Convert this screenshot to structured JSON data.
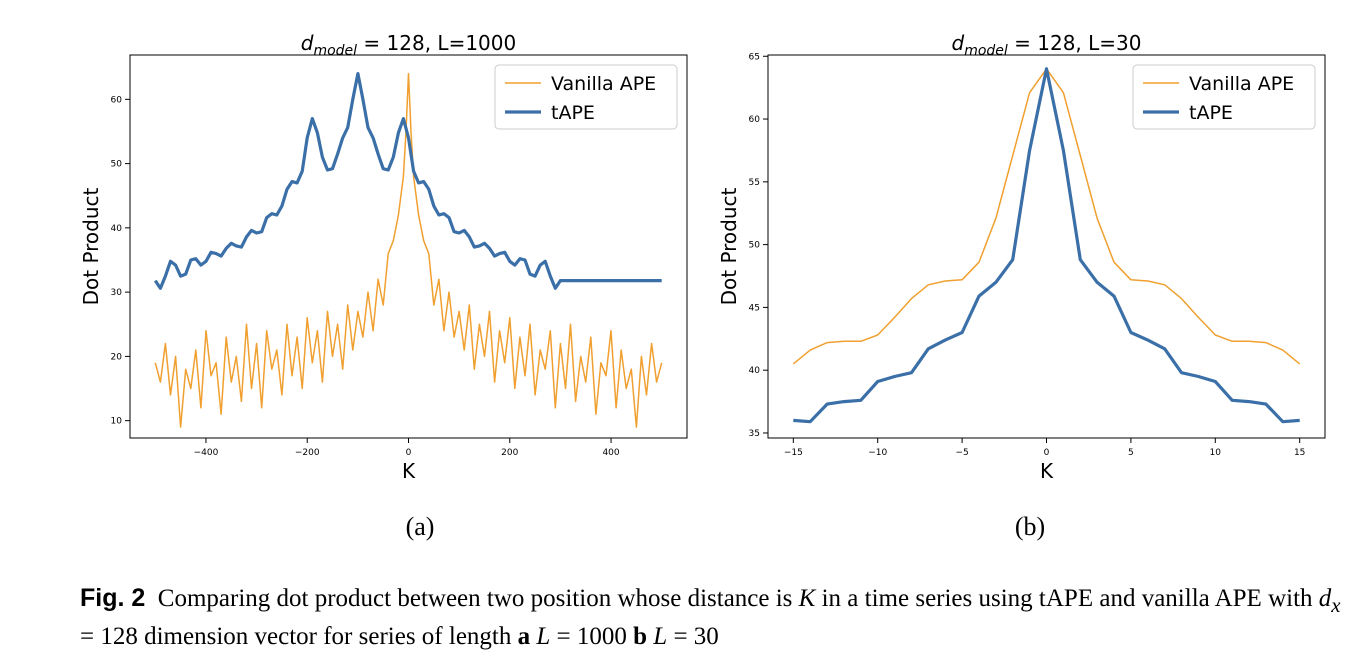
{
  "chart_data": [
    {
      "type": "line",
      "title": "d_model = 128, L=1000",
      "xlabel": "K",
      "ylabel": "Dot Product",
      "xlim": [
        -550,
        550
      ],
      "ylim": [
        7.3,
        66.9
      ],
      "xticks": [
        -400,
        -200,
        0,
        200,
        400
      ],
      "yticks": [
        10,
        20,
        30,
        40,
        50,
        60
      ],
      "grid": false,
      "legend": "top-right",
      "series": [
        {
          "name": "Vanilla APE",
          "color": "#f0a030",
          "x": [
            -500,
            -490,
            -480,
            -470,
            -460,
            -450,
            -440,
            -430,
            -420,
            -410,
            -400,
            -390,
            -380,
            -370,
            -360,
            -350,
            -340,
            -330,
            -320,
            -310,
            -300,
            -290,
            -280,
            -270,
            -260,
            -250,
            -240,
            -230,
            -220,
            -210,
            -200,
            -190,
            -180,
            -170,
            -160,
            -150,
            -140,
            -130,
            -120,
            -110,
            -100,
            -90,
            -80,
            -70,
            -60,
            -50,
            -40,
            -30,
            -20,
            -10,
            -5,
            0,
            5,
            10,
            20,
            30,
            40,
            50,
            60,
            70,
            80,
            90,
            100,
            110,
            120,
            130,
            140,
            150,
            160,
            170,
            180,
            190,
            200,
            210,
            220,
            230,
            240,
            250,
            260,
            270,
            280,
            290,
            300,
            310,
            320,
            330,
            340,
            350,
            360,
            370,
            380,
            390,
            400,
            410,
            420,
            430,
            440,
            450,
            460,
            470,
            480,
            490,
            500
          ],
          "y": [
            19,
            16,
            22,
            14,
            20,
            9,
            18,
            15,
            21,
            12,
            24,
            17,
            19,
            11,
            23,
            16,
            20,
            13,
            25,
            15,
            22,
            12,
            24,
            18,
            21,
            14,
            25,
            17,
            23,
            15,
            26,
            19,
            24,
            16,
            27,
            20,
            25,
            18,
            28,
            21,
            27,
            23,
            30,
            24,
            32,
            28,
            36,
            38,
            42,
            48,
            55,
            64,
            55,
            48,
            42,
            38,
            36,
            28,
            32,
            24,
            30,
            23,
            27,
            21,
            28,
            18,
            25,
            20,
            27,
            16,
            24,
            19,
            26,
            15,
            23,
            17,
            25,
            14,
            21,
            18,
            24,
            12,
            22,
            15,
            25,
            13,
            20,
            16,
            23,
            11,
            19,
            17,
            24,
            12,
            21,
            15,
            18,
            9,
            20,
            14,
            22,
            16,
            19
          ]
        },
        {
          "name": "tAPE",
          "color": "#3a6fa8",
          "x": [
            -500,
            -490,
            -480,
            -470,
            -460,
            -450,
            -440,
            -430,
            -420,
            -410,
            -400,
            -390,
            -380,
            -370,
            -360,
            -350,
            -340,
            -330,
            -320,
            -310,
            -300,
            -290,
            -280,
            -270,
            -260,
            -250,
            -240,
            -230,
            -220,
            -210,
            -200,
            -190,
            -180,
            -170,
            -160,
            -150,
            -140,
            -130,
            -120,
            -110,
            -100,
            -90,
            -80,
            -70,
            -60,
            -50,
            -40,
            -30,
            -20,
            -10,
            0,
            10,
            20,
            30,
            40,
            50,
            60,
            70,
            80,
            90,
            100,
            110,
            120,
            130,
            140,
            150,
            160,
            170,
            180,
            190,
            200,
            210,
            220,
            230,
            240,
            250,
            260,
            270,
            280,
            290,
            300,
            310,
            320,
            330,
            340,
            350,
            360,
            370,
            380,
            390,
            400,
            410,
            420,
            430,
            440,
            450,
            460,
            470,
            480,
            490,
            500
          ],
          "y": [
            31.8,
            30.6,
            32.5,
            34.8,
            34.2,
            32.5,
            32.8,
            35.0,
            35.2,
            34.2,
            34.8,
            36.2,
            36.0,
            35.6,
            36.8,
            37.6,
            37.2,
            37.0,
            38.6,
            39.6,
            39.2,
            39.4,
            41.6,
            42.2,
            42.0,
            43.4,
            46.0,
            47.2,
            47.0,
            48.8,
            54.0,
            57.0,
            54.8,
            51.0,
            49.0,
            49.2,
            51.5,
            54.0,
            55.6,
            60.0,
            64.0,
            60.0,
            55.6,
            54.0,
            51.5,
            49.2,
            49.0,
            51.0,
            54.8,
            57.0,
            54.0,
            48.8,
            47.0,
            47.2,
            46.0,
            43.4,
            42.0,
            42.2,
            41.6,
            39.4,
            39.2,
            39.6,
            38.6,
            37.0,
            37.2,
            37.6,
            36.8,
            35.6,
            36.0,
            36.2,
            34.8,
            34.2,
            35.2,
            35.0,
            32.8,
            32.5,
            34.2,
            34.8,
            32.5,
            30.6,
            31.8,
            31.8,
            31.8,
            31.8,
            31.8,
            31.8,
            31.8,
            31.8,
            31.8,
            31.8,
            31.8,
            31.8,
            31.8,
            31.8,
            31.8,
            31.8,
            31.8,
            31.8,
            31.8,
            31.8,
            31.8
          ]
        }
      ],
      "subfigure_label": "(a)"
    },
    {
      "type": "line",
      "title": "d_model = 128, L=30",
      "xlabel": "K",
      "ylabel": "Dot Product",
      "xlim": [
        -16.5,
        16.5
      ],
      "ylim": [
        34.6,
        65.1
      ],
      "xticks": [
        -15,
        -10,
        -5,
        0,
        5,
        10,
        15
      ],
      "yticks": [
        35,
        40,
        45,
        50,
        55,
        60,
        65
      ],
      "grid": false,
      "legend": "top-right",
      "series": [
        {
          "name": "Vanilla APE",
          "color": "#f0a030",
          "x": [
            -15,
            -14,
            -13,
            -12,
            -11,
            -10,
            -9,
            -8,
            -7,
            -6,
            -5,
            -4,
            -3,
            -2,
            -1,
            0,
            1,
            2,
            3,
            4,
            5,
            6,
            7,
            8,
            9,
            10,
            11,
            12,
            13,
            14,
            15
          ],
          "y": [
            40.5,
            41.6,
            42.2,
            42.3,
            42.3,
            42.8,
            44.2,
            45.7,
            46.8,
            47.1,
            47.2,
            48.6,
            52.1,
            57.1,
            62.1,
            64.0,
            62.1,
            57.1,
            52.1,
            48.6,
            47.2,
            47.1,
            46.8,
            45.7,
            44.2,
            42.8,
            42.3,
            42.3,
            42.2,
            41.6,
            40.5
          ]
        },
        {
          "name": "tAPE",
          "color": "#3a6fa8",
          "x": [
            -15,
            -14,
            -13,
            -12,
            -11,
            -10,
            -9,
            -8,
            -7,
            -6,
            -5,
            -4,
            -3,
            -2,
            -1,
            0,
            1,
            2,
            3,
            4,
            5,
            6,
            7,
            8,
            9,
            10,
            11,
            12,
            13,
            14,
            15
          ],
          "y": [
            36.0,
            35.9,
            37.3,
            37.5,
            37.6,
            39.1,
            39.5,
            39.8,
            41.7,
            42.4,
            43.0,
            45.9,
            47.0,
            48.8,
            57.5,
            64.0,
            57.5,
            48.8,
            47.0,
            45.9,
            43.0,
            42.4,
            41.7,
            39.8,
            39.5,
            39.1,
            37.6,
            37.5,
            37.3,
            35.9,
            36.0
          ]
        }
      ],
      "subfigure_label": "(b)"
    }
  ],
  "caption": {
    "label": "Fig. 2",
    "text_1": "Comparing dot product between two position whose distance is ",
    "var_K": "K",
    "text_2": " in a time series using tAPE and vanilla APE with ",
    "var_dx": "d",
    "sub_x": "x",
    "text_3": " = 128 dimension vector for series of length ",
    "a": "a",
    "var_L1": "L",
    "text_4": " = 1000 ",
    "b": "b",
    "var_L2": "L",
    "text_5": " = 30"
  }
}
